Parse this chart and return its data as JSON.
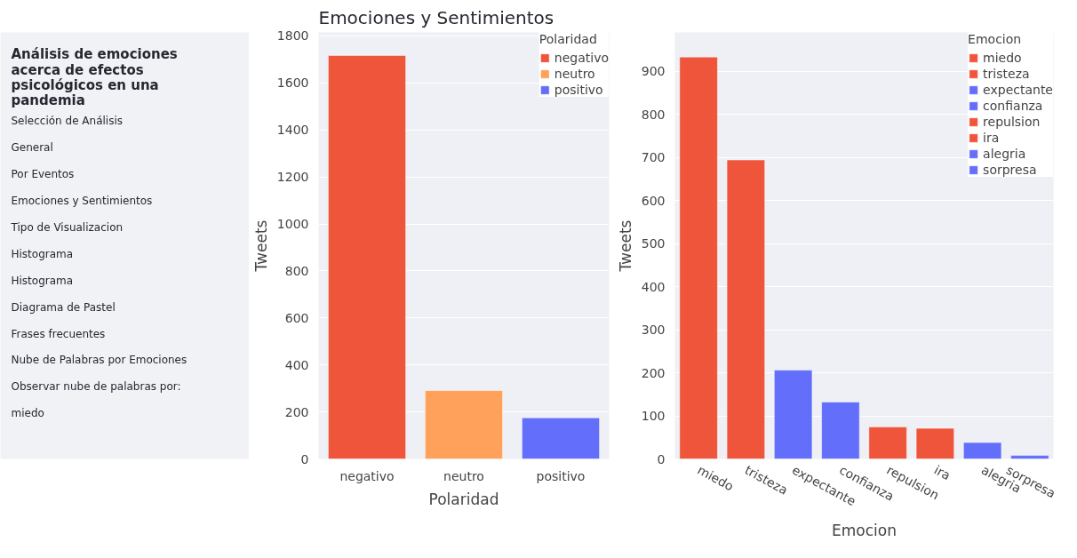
{
  "chart_data": [
    {
      "type": "other",
      "title": "Análisis de emociones acerca de efectos psicológicos en una pandemia",
      "annotations": [
        "Selección de Análisis",
        "General",
        "Por Eventos",
        "Emociones y Sentimientos",
        "Tipo de Visualizacion",
        "Histograma",
        "Histograma",
        "Diagrama de Pastel",
        "Frases frecuentes",
        "Nube de Palabras por Emociones",
        "Observar nube de palabras por:",
        "miedo"
      ]
    },
    {
      "type": "bar",
      "title": "Emociones y Sentimientos",
      "xlabel": "Polaridad",
      "ylabel": "Tweets",
      "legend_title": "Polaridad",
      "legend": "top right",
      "grid": "y",
      "categories": [
        "negativo",
        "neutro",
        "positivo"
      ],
      "series": [
        {
          "name": "negativo",
          "color": "#ef553b",
          "values": [
            1717,
            null,
            null
          ]
        },
        {
          "name": "neutro",
          "color": "#ffa15a",
          "values": [
            null,
            291,
            null
          ]
        },
        {
          "name": "positivo",
          "color": "#636efa",
          "values": [
            null,
            null,
            175
          ]
        }
      ],
      "ylim": [
        0,
        1815
      ],
      "yticks": [
        0,
        200,
        400,
        600,
        800,
        1000,
        1200,
        1400,
        1600,
        1800
      ]
    },
    {
      "type": "bar",
      "xlabel": "Emocion",
      "ylabel": "Tweets",
      "legend_title": "Emocion",
      "legend": "top right",
      "grid": "y",
      "categories": [
        "miedo",
        "tristeza",
        "expectante",
        "confianza",
        "repulsion",
        "ira",
        "alegria",
        "sorpresa"
      ],
      "series": [
        {
          "name": "miedo",
          "color": "#ef553b",
          "values": [
            933,
            null,
            null,
            null,
            null,
            null,
            null,
            null
          ]
        },
        {
          "name": "tristeza",
          "color": "#ef553b",
          "values": [
            null,
            694,
            null,
            null,
            null,
            null,
            null,
            null
          ]
        },
        {
          "name": "expectante",
          "color": "#636efa",
          "values": [
            null,
            null,
            206,
            null,
            null,
            null,
            null,
            null
          ]
        },
        {
          "name": "confianza",
          "color": "#636efa",
          "values": [
            null,
            null,
            null,
            132,
            null,
            null,
            null,
            null
          ]
        },
        {
          "name": "repulsion",
          "color": "#ef553b",
          "values": [
            null,
            null,
            null,
            null,
            74,
            null,
            null,
            null
          ]
        },
        {
          "name": "ira",
          "color": "#ef553b",
          "values": [
            null,
            null,
            null,
            null,
            null,
            71,
            null,
            null
          ]
        },
        {
          "name": "alegria",
          "color": "#636efa",
          "values": [
            null,
            null,
            null,
            null,
            null,
            null,
            38,
            null
          ]
        },
        {
          "name": "sorpresa",
          "color": "#636efa",
          "values": [
            null,
            null,
            null,
            null,
            null,
            null,
            null,
            8
          ]
        }
      ],
      "ylim": [
        0,
        990
      ],
      "yticks": [
        0,
        100,
        200,
        300,
        400,
        500,
        600,
        700,
        800,
        900
      ]
    }
  ]
}
